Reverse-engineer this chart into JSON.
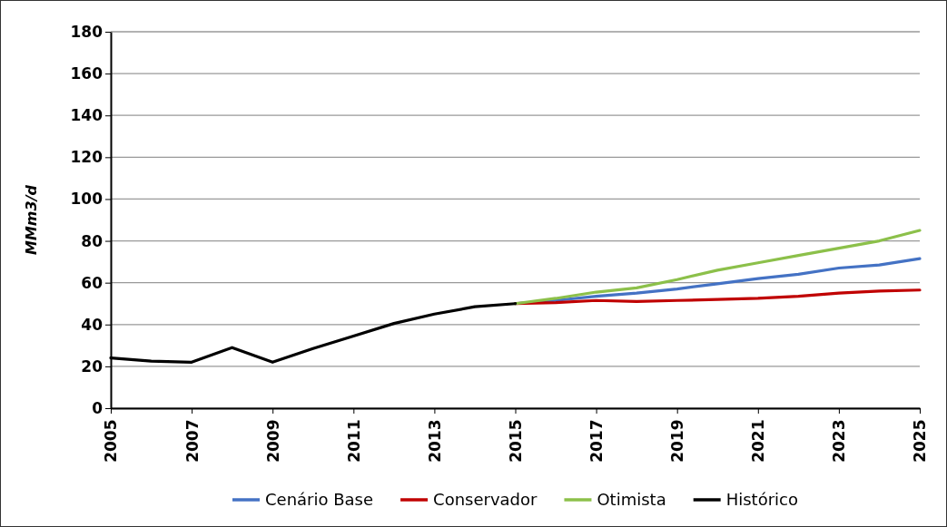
{
  "chart_data": {
    "type": "line",
    "ylabel": "MMm3/d",
    "xlim": [
      2005,
      2025
    ],
    "xticks": [
      2005,
      2007,
      2009,
      2011,
      2013,
      2015,
      2017,
      2019,
      2021,
      2023,
      2025
    ],
    "ylim": [
      0,
      180
    ],
    "yticks": [
      0,
      20,
      40,
      60,
      80,
      100,
      120,
      140,
      160,
      180
    ],
    "grid": "y",
    "legend": "bottom",
    "line_style": "solid",
    "marker": "none",
    "series": [
      {
        "name": "Cenário Base",
        "color": "#4472c4",
        "x": [
          2015,
          2016,
          2017,
          2018,
          2019,
          2020,
          2021,
          2022,
          2023,
          2024,
          2025
        ],
        "values": [
          50,
          51.5,
          53.5,
          55,
          57,
          59.5,
          62,
          64,
          67,
          68.5,
          71.5
        ]
      },
      {
        "name": "Conservador",
        "color": "#c00000",
        "x": [
          2015,
          2016,
          2017,
          2018,
          2019,
          2020,
          2021,
          2022,
          2023,
          2024,
          2025
        ],
        "values": [
          50,
          50.5,
          51.5,
          51,
          51.5,
          52,
          52.5,
          53.5,
          55,
          56,
          56.5
        ]
      },
      {
        "name": "Otimista",
        "color": "#8cc04a",
        "x": [
          2015,
          2016,
          2017,
          2018,
          2019,
          2020,
          2021,
          2022,
          2023,
          2024,
          2025
        ],
        "values": [
          50,
          52.5,
          55.5,
          57.5,
          61.5,
          66,
          69.5,
          73,
          76.5,
          80,
          85
        ]
      },
      {
        "name": "Histórico",
        "color": "#000000",
        "x": [
          2005,
          2006,
          2007,
          2008,
          2009,
          2010,
          2011,
          2012,
          2013,
          2014,
          2015
        ],
        "values": [
          24,
          22.5,
          22,
          29,
          22,
          28.5,
          34.5,
          40.5,
          45,
          48.5,
          50
        ]
      }
    ]
  }
}
